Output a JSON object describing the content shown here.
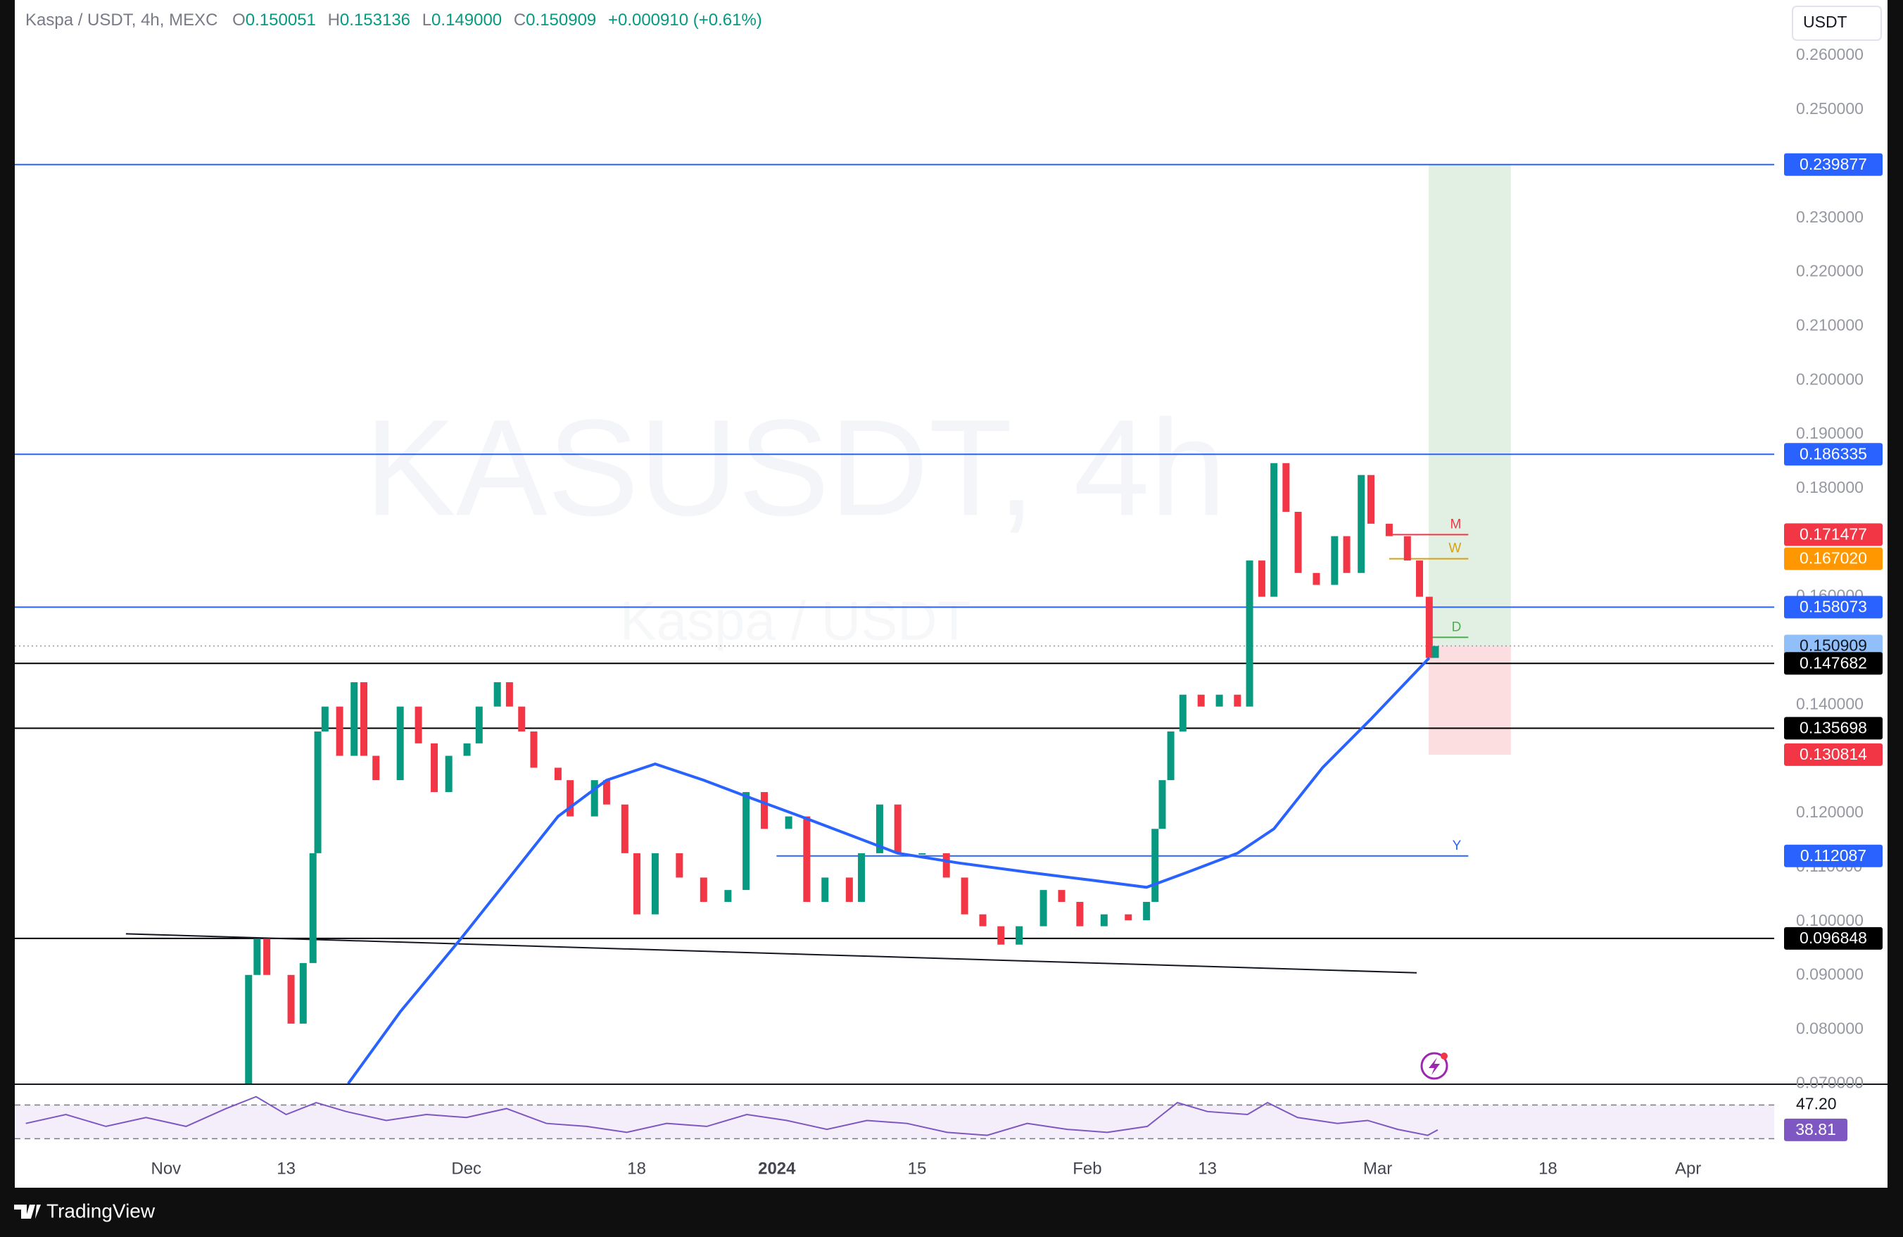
{
  "header": {
    "symbol": "Kaspa / USDT, 4h, MEXC",
    "o_label": "O",
    "o": "0.150051",
    "h_label": "H",
    "h": "0.153136",
    "l_label": "L",
    "l": "0.149000",
    "c_label": "C",
    "c": "0.150909",
    "change": "+0.000910 (+0.61%)"
  },
  "currency_button": "USDT",
  "watermark": {
    "line1": "KASUSDT, 4h",
    "line2": "Kaspa / USDT"
  },
  "footer": {
    "brand": "TradingView"
  },
  "chart_data": {
    "type": "candlestick",
    "xlim": [
      -15.1,
      160.6
    ],
    "ylim": [
      0.0699,
      0.2703
    ],
    "xticks": [
      {
        "value": 0,
        "label": "Nov"
      },
      {
        "value": 12,
        "label": "13"
      },
      {
        "value": 30,
        "label": "Dec"
      },
      {
        "value": 47,
        "label": "18"
      },
      {
        "value": 61,
        "label": "2024"
      },
      {
        "value": 75,
        "label": "15"
      },
      {
        "value": 92,
        "label": "Feb"
      },
      {
        "value": 104,
        "label": "13"
      },
      {
        "value": 121,
        "label": "Mar"
      },
      {
        "value": 138,
        "label": "18"
      },
      {
        "value": 152,
        "label": "Apr"
      }
    ],
    "yticks": [
      {
        "value": 0.26,
        "label": "0.260000"
      },
      {
        "value": 0.25,
        "label": "0.250000"
      },
      {
        "value": 0.23,
        "label": "0.230000"
      },
      {
        "value": 0.22,
        "label": "0.220000"
      },
      {
        "value": 0.21,
        "label": "0.210000"
      },
      {
        "value": 0.2,
        "label": "0.200000"
      },
      {
        "value": 0.19,
        "label": "0.190000"
      },
      {
        "value": 0.18,
        "label": "0.180000"
      },
      {
        "value": 0.16,
        "label": "0.160000"
      },
      {
        "value": 0.14,
        "label": "0.140000"
      },
      {
        "value": 0.12,
        "label": "0.120000"
      },
      {
        "value": 0.11,
        "label": "0.110000"
      },
      {
        "value": 0.1,
        "label": "0.100000"
      },
      {
        "value": 0.09,
        "label": "0.090000"
      },
      {
        "value": 0.08,
        "label": "0.080000"
      },
      {
        "value": 0.07,
        "label": "0.070000"
      }
    ],
    "price": {
      "color_up": "#089981",
      "color_down": "#f23645",
      "x": [
        7.04,
        8.25,
        9.1,
        10.07,
        12.49,
        13.7,
        14.68,
        15.16,
        15.88,
        17.34,
        18.79,
        19.76,
        20.97,
        23.39,
        25.21,
        26.79,
        28.24,
        30.06,
        31.27,
        33.09,
        34.3,
        35.52,
        36.73,
        39.15,
        40.36,
        42.79,
        44.0,
        45.82,
        47.03,
        48.85,
        51.27,
        53.69,
        56.12,
        57.93,
        59.75,
        62.18,
        63.99,
        65.81,
        68.24,
        69.45,
        71.27,
        73.08,
        75.51,
        77.93,
        79.75,
        81.57,
        83.38,
        85.2,
        87.62,
        89.44,
        91.26,
        93.68,
        96.1,
        97.92,
        98.77,
        99.49,
        100.34,
        101.55,
        103.37,
        105.19,
        107.0,
        108.21,
        109.43,
        110.64,
        111.85,
        113.06,
        114.88,
        116.7,
        117.91,
        119.36,
        120.33,
        122.15,
        123.97,
        125.18,
        126.15,
        126.76
      ],
      "close": [
        0.07,
        0.0901,
        0.0968,
        0.0901,
        0.0811,
        0.0923,
        0.1126,
        0.1351,
        0.1397,
        0.1306,
        0.1442,
        0.1306,
        0.1261,
        0.1397,
        0.1329,
        0.1239,
        0.1306,
        0.1329,
        0.1397,
        0.1442,
        0.1397,
        0.1351,
        0.1284,
        0.1261,
        0.1194,
        0.1261,
        0.1216,
        0.1126,
        0.1013,
        0.1126,
        0.1081,
        0.1036,
        0.1058,
        0.1239,
        0.1171,
        0.1194,
        0.1036,
        0.1081,
        0.1036,
        0.1126,
        0.1216,
        0.1126,
        0.1126,
        0.1081,
        0.1013,
        0.0991,
        0.0957,
        0.0991,
        0.1058,
        0.1036,
        0.0991,
        0.1013,
        0.1002,
        0.1036,
        0.1171,
        0.1261,
        0.1351,
        0.1419,
        0.1397,
        0.1419,
        0.1397,
        0.1667,
        0.16,
        0.1847,
        0.1757,
        0.1644,
        0.1622,
        0.1712,
        0.1644,
        0.1825,
        0.1735,
        0.1712,
        0.1667,
        0.16,
        0.1487,
        0.1509
      ]
    },
    "moving_average": {
      "color": "#2962ff",
      "x": [
        18.19,
        23.4,
        29.45,
        34.3,
        39.15,
        44.0,
        48.85,
        53.69,
        58.54,
        63.39,
        68.24,
        73.08,
        79.14,
        86.41,
        92.47,
        97.92,
        102.17,
        107.0,
        110.64,
        115.49,
        120.33,
        126.15
      ],
      "values": [
        0.07,
        0.0833,
        0.0968,
        0.1081,
        0.1194,
        0.1261,
        0.1291,
        0.1261,
        0.1227,
        0.1194,
        0.116,
        0.1126,
        0.1108,
        0.109,
        0.1076,
        0.1063,
        0.1092,
        0.1126,
        0.1171,
        0.1284,
        0.1374,
        0.1487
      ]
    },
    "levels": [
      {
        "value": 0.239877,
        "label": "0.239877",
        "color": "#2962ff",
        "line": "solid"
      },
      {
        "value": 0.186335,
        "label": "0.186335",
        "color": "#2962ff",
        "line": "solid"
      },
      {
        "value": 0.171477,
        "label": "0.171477",
        "color": "#f23645",
        "line": "none"
      },
      {
        "value": 0.16702,
        "label": "0.167020",
        "color": "#ff9800",
        "line": "none"
      },
      {
        "value": 0.158073,
        "label": "0.158073",
        "color": "#2962ff",
        "line": "solid"
      },
      {
        "value": 0.150909,
        "label": "0.150909",
        "color": "#90bff9",
        "line": "dotted"
      },
      {
        "value": 0.147682,
        "label": "0.147682",
        "color": "#000000",
        "line": "solid"
      },
      {
        "value": 0.135698,
        "label": "0.135698",
        "color": "#000000",
        "line": "solid"
      },
      {
        "value": 0.130814,
        "label": "0.130814",
        "color": "#f23645",
        "line": "none"
      },
      {
        "value": 0.112087,
        "label": "0.112087",
        "color": "#2962ff",
        "line": "none"
      },
      {
        "value": 0.096848,
        "label": "0.096848",
        "color": "#000000",
        "line": "solid"
      }
    ],
    "tags": [
      {
        "text": "M",
        "value": 0.171477,
        "x": [
          122.5,
          130.05
        ],
        "color": "#f23645"
      },
      {
        "text": "W",
        "value": 0.16702,
        "x": [
          122.15,
          130.05
        ],
        "color": "#d4a017"
      },
      {
        "text": "D",
        "value": 0.1525,
        "x": [
          126.15,
          130.05
        ],
        "color": "#4caf50"
      },
      {
        "text": "Y",
        "value": 0.112087,
        "x": [
          60.97,
          130.05
        ],
        "color": "#2962ff"
      }
    ],
    "position": {
      "entry": 0.150909,
      "target": 0.239877,
      "stop": 0.130814,
      "x": [
        126.1,
        134.3
      ]
    },
    "trendline": {
      "x": [
        -4,
        124.9
      ],
      "y": [
        0.0977,
        0.0905
      ]
    },
    "rsi": {
      "color": "#7e57c2",
      "ylim": [
        31.68,
        53.49
      ],
      "bands": [
        47.2,
        35.87
      ],
      "yticks": [
        {
          "value": 47.2,
          "label": "47.20"
        }
      ],
      "current": {
        "value": 38.81,
        "label": "38.81"
      },
      "x": [
        -14,
        -10,
        -6,
        -2,
        2,
        6,
        9,
        12,
        15,
        18,
        22,
        26,
        30,
        34,
        38,
        42,
        46,
        50,
        54,
        58,
        62,
        66,
        70,
        74,
        78,
        82,
        86,
        90,
        94,
        98,
        101,
        104,
        108,
        110,
        113,
        117,
        120,
        123,
        126,
        127
      ],
      "values": [
        41,
        44,
        40,
        43,
        40,
        46,
        50,
        44,
        48,
        45,
        42,
        44,
        43,
        46,
        41,
        40,
        38,
        41,
        40,
        44,
        42,
        39,
        42,
        41,
        38,
        37,
        41,
        39,
        38,
        40,
        48,
        45,
        44,
        48,
        43,
        41,
        42,
        39,
        37,
        38.81
      ]
    }
  }
}
